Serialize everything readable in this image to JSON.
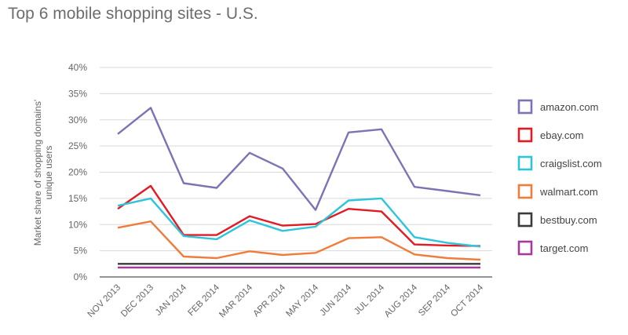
{
  "chart_data": {
    "type": "line",
    "title": "Top 6 mobile shopping sites - U.S.",
    "ylabel_lines": [
      "Market share of shopping domains'",
      "unique users"
    ],
    "xlabel": "",
    "categories": [
      "NOV 2013",
      "DEC 2013",
      "JAN 2014",
      "FEB 2014",
      "MAR 2014",
      "APR 2014",
      "MAY 2014",
      "JUN 2014",
      "JUL 2014",
      "AUG 2014",
      "SEP 2014",
      "OCT 2014"
    ],
    "ylim": [
      0,
      40
    ],
    "yticks": [
      0,
      5,
      10,
      15,
      20,
      25,
      30,
      35,
      40
    ],
    "ytick_labels": [
      "0%",
      "5%",
      "10%",
      "15%",
      "20%",
      "25%",
      "30%",
      "35%",
      "40%"
    ],
    "grid": true,
    "legend_position": "right",
    "series": [
      {
        "name": "amazon.com",
        "color": "#7b73b4",
        "values": [
          27.3,
          32.3,
          17.9,
          17.0,
          23.7,
          20.7,
          12.8,
          27.6,
          28.2,
          17.2,
          16.4,
          15.6
        ]
      },
      {
        "name": "ebay.com",
        "color": "#e21b23",
        "values": [
          13.0,
          17.4,
          8.0,
          8.0,
          11.6,
          9.8,
          10.1,
          13.0,
          12.5,
          6.2,
          6.0,
          5.9
        ]
      },
      {
        "name": "craigslist.com",
        "color": "#2ec4dc",
        "values": [
          13.6,
          15.0,
          7.8,
          7.2,
          10.8,
          8.8,
          9.6,
          14.6,
          15.0,
          7.6,
          6.5,
          5.8
        ]
      },
      {
        "name": "walmart.com",
        "color": "#f07c3c",
        "values": [
          9.4,
          10.6,
          3.9,
          3.6,
          4.9,
          4.2,
          4.6,
          7.4,
          7.6,
          4.3,
          3.6,
          3.3
        ]
      },
      {
        "name": "bestbuy.com",
        "color": "#3a3a3a",
        "values": [
          2.5,
          2.5,
          2.5,
          2.5,
          2.5,
          2.5,
          2.5,
          2.5,
          2.5,
          2.5,
          2.5,
          2.5
        ]
      },
      {
        "name": "target.com",
        "color": "#a23b9c",
        "values": [
          1.8,
          1.8,
          1.8,
          1.8,
          1.8,
          1.8,
          1.8,
          1.8,
          1.8,
          1.8,
          1.8,
          1.8
        ]
      }
    ]
  }
}
